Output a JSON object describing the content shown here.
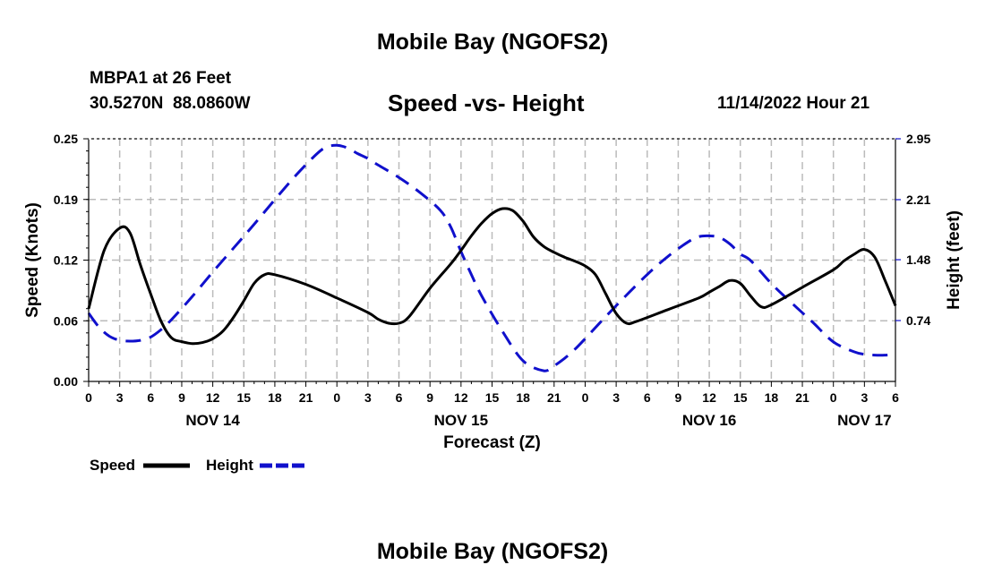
{
  "page": {
    "title_top": "Mobile Bay (NGOFS2)",
    "title_bottom": "Mobile Bay (NGOFS2)",
    "station_line": "MBPA1 at 26 Feet",
    "coords_line": "30.5270N  88.0860W",
    "subtitle": "Speed -vs- Height",
    "timestamp": "11/14/2022 Hour 21"
  },
  "colors": {
    "speed": "#000000",
    "height": "#1010cc",
    "grid": "#bbbbbb"
  },
  "chart_data": {
    "type": "line",
    "xlabel": "Forecast (Z)",
    "ylabel": "Speed (Knots)",
    "y2label": "Height (feet)",
    "x_range_hours": [
      0,
      78
    ],
    "x_tick_step": 3,
    "x_tick_labels": [
      "0",
      "3",
      "6",
      "9",
      "12",
      "15",
      "18",
      "21",
      "0",
      "3",
      "6",
      "9",
      "12",
      "15",
      "18",
      "21",
      "0",
      "3",
      "6",
      "9",
      "12",
      "15",
      "18",
      "21",
      "0",
      "3",
      "6"
    ],
    "date_labels": [
      {
        "label": "NOV 14",
        "hour": 12
      },
      {
        "label": "NOV 15",
        "hour": 36
      },
      {
        "label": "NOV 16",
        "hour": 60
      },
      {
        "label": "NOV 17",
        "hour": 75
      }
    ],
    "ylim": [
      0,
      0.25
    ],
    "y_ticks": [
      {
        "value": 0.0,
        "label": "0.00"
      },
      {
        "value": 0.0625,
        "label": "0.06"
      },
      {
        "value": 0.125,
        "label": "0.12"
      },
      {
        "value": 0.1875,
        "label": "0.19"
      },
      {
        "value": 0.25,
        "label": "0.25"
      }
    ],
    "y2lim": [
      0,
      2.95
    ],
    "y2_ticks": [
      {
        "value": 0.74,
        "label": "0.74"
      },
      {
        "value": 1.48,
        "label": "1.48"
      },
      {
        "value": 2.21,
        "label": "2.21"
      },
      {
        "value": 2.95,
        "label": "2.95"
      }
    ],
    "series": [
      {
        "name": "Speed",
        "axis": "left",
        "style": "solid",
        "x": [
          0,
          1.5,
          3,
          4,
          5,
          6,
          7,
          8,
          9,
          10,
          11,
          12,
          13,
          14,
          15,
          16,
          17,
          18,
          21,
          24,
          27,
          28,
          29,
          30,
          31,
          33,
          35,
          36,
          37,
          38,
          39,
          40,
          41,
          42,
          43,
          44,
          45,
          46,
          47,
          48,
          49,
          50,
          51,
          52,
          53,
          56,
          59,
          60,
          61,
          62,
          63,
          64,
          65,
          66,
          69,
          72,
          73,
          74,
          75,
          76,
          77,
          78
        ],
        "y": [
          0.075,
          0.135,
          0.158,
          0.153,
          0.12,
          0.09,
          0.062,
          0.045,
          0.041,
          0.039,
          0.04,
          0.044,
          0.052,
          0.066,
          0.083,
          0.101,
          0.11,
          0.11,
          0.1,
          0.086,
          0.071,
          0.064,
          0.06,
          0.06,
          0.067,
          0.096,
          0.121,
          0.135,
          0.15,
          0.163,
          0.173,
          0.178,
          0.176,
          0.165,
          0.149,
          0.139,
          0.133,
          0.128,
          0.124,
          0.119,
          0.11,
          0.09,
          0.07,
          0.06,
          0.062,
          0.074,
          0.086,
          0.092,
          0.098,
          0.104,
          0.101,
          0.088,
          0.077,
          0.079,
          0.097,
          0.115,
          0.124,
          0.131,
          0.136,
          0.128,
          0.104,
          0.078
        ]
      },
      {
        "name": "Height",
        "axis": "right",
        "style": "dashed",
        "x": [
          0,
          1,
          2,
          3,
          4,
          5,
          6,
          7,
          8,
          10,
          12,
          14,
          16,
          18,
          20,
          22,
          23,
          24,
          25,
          26,
          27,
          28,
          30,
          32,
          34,
          35,
          36,
          37,
          38,
          40,
          42,
          44,
          45,
          46,
          47,
          48,
          50,
          52,
          54,
          56,
          58,
          59,
          60,
          61,
          62,
          63,
          64,
          66,
          68,
          70,
          72,
          74,
          75,
          76,
          77,
          78
        ],
        "y": [
          0.83,
          0.66,
          0.55,
          0.5,
          0.49,
          0.5,
          0.54,
          0.63,
          0.75,
          1.03,
          1.33,
          1.62,
          1.91,
          2.21,
          2.5,
          2.76,
          2.85,
          2.87,
          2.84,
          2.77,
          2.71,
          2.63,
          2.48,
          2.3,
          2.08,
          1.88,
          1.58,
          1.3,
          1.04,
          0.61,
          0.25,
          0.13,
          0.19,
          0.28,
          0.39,
          0.52,
          0.79,
          1.05,
          1.3,
          1.52,
          1.7,
          1.76,
          1.77,
          1.75,
          1.67,
          1.55,
          1.47,
          1.19,
          0.95,
          0.72,
          0.48,
          0.36,
          0.33,
          0.32,
          0.32,
          0.33
        ]
      }
    ],
    "legend": [
      {
        "label": "Speed",
        "series": "Speed"
      },
      {
        "label": "Height",
        "series": "Height"
      }
    ],
    "legend_position": "bottom-left",
    "grid": true
  }
}
